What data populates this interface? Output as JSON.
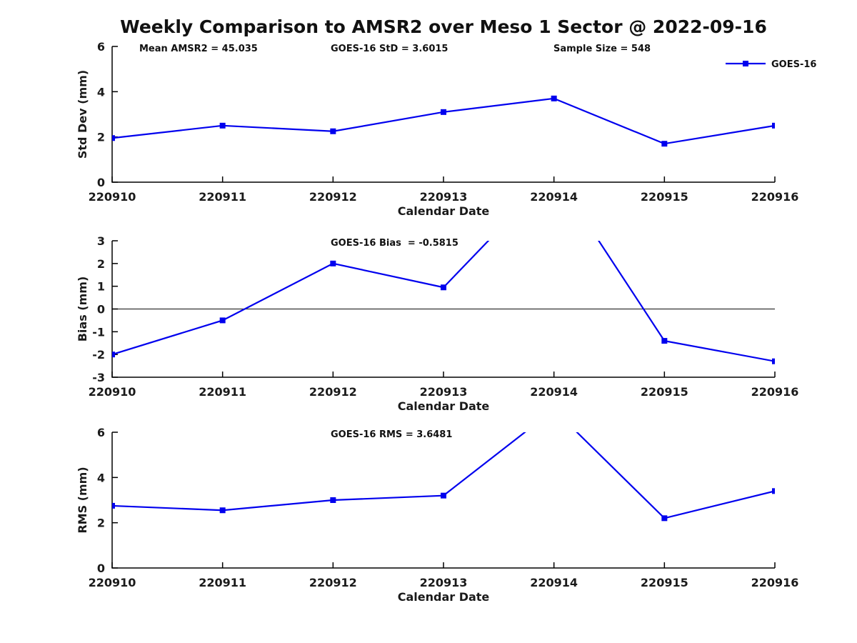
{
  "title": "Weekly Comparison to AMSR2 over Meso 1 Sector @ 2022-09-16",
  "colors": {
    "series": "#0000EE",
    "axis": "#000000",
    "text": "#1a1a1a",
    "zero_line": "#333333"
  },
  "legend": {
    "label": "GOES-16",
    "marker": "square"
  },
  "chart_data": [
    {
      "id": "std-dev",
      "type": "line",
      "xlabel": "Calendar Date",
      "ylabel": "Std Dev (mm)",
      "ylim": [
        0,
        6
      ],
      "yticks": [
        0,
        2,
        4,
        6
      ],
      "categories": [
        "220910",
        "220911",
        "220912",
        "220913",
        "220914",
        "220915",
        "220916"
      ],
      "series": [
        {
          "name": "GOES-16",
          "values": [
            1.95,
            2.5,
            2.25,
            3.1,
            3.7,
            1.7,
            2.5
          ]
        }
      ],
      "annotations": [
        "Mean AMSR2 = 45.035",
        "GOES-16 StD = 3.6015",
        "Sample Size = 548"
      ],
      "legend": true,
      "zero_line": false,
      "grid": false
    },
    {
      "id": "bias",
      "type": "line",
      "xlabel": "Calendar Date",
      "ylabel": "Bias (mm)",
      "ylim": [
        -3,
        3
      ],
      "yticks": [
        -3,
        -2,
        -1,
        0,
        1,
        2,
        3
      ],
      "categories": [
        "220910",
        "220911",
        "220912",
        "220913",
        "220914",
        "220915",
        "220916"
      ],
      "series": [
        {
          "name": "GOES-16",
          "values": [
            -2.0,
            -0.5,
            2.0,
            0.95,
            6.0,
            -1.4,
            -2.3
          ]
        }
      ],
      "annotations": [
        "GOES-16 Bias  = -0.5815"
      ],
      "legend": false,
      "zero_line": true,
      "grid": false
    },
    {
      "id": "rms",
      "type": "line",
      "xlabel": "Calendar Date",
      "ylabel": "RMS (mm)",
      "ylim": [
        0,
        6
      ],
      "yticks": [
        0,
        2,
        4,
        6
      ],
      "categories": [
        "220910",
        "220911",
        "220912",
        "220913",
        "220914",
        "220915",
        "220916"
      ],
      "series": [
        {
          "name": "GOES-16",
          "values": [
            2.75,
            2.55,
            3.0,
            3.2,
            7.0,
            2.2,
            3.4
          ]
        }
      ],
      "annotations": [
        "GOES-16 RMS = 3.6481"
      ],
      "legend": false,
      "zero_line": false,
      "grid": false
    }
  ]
}
